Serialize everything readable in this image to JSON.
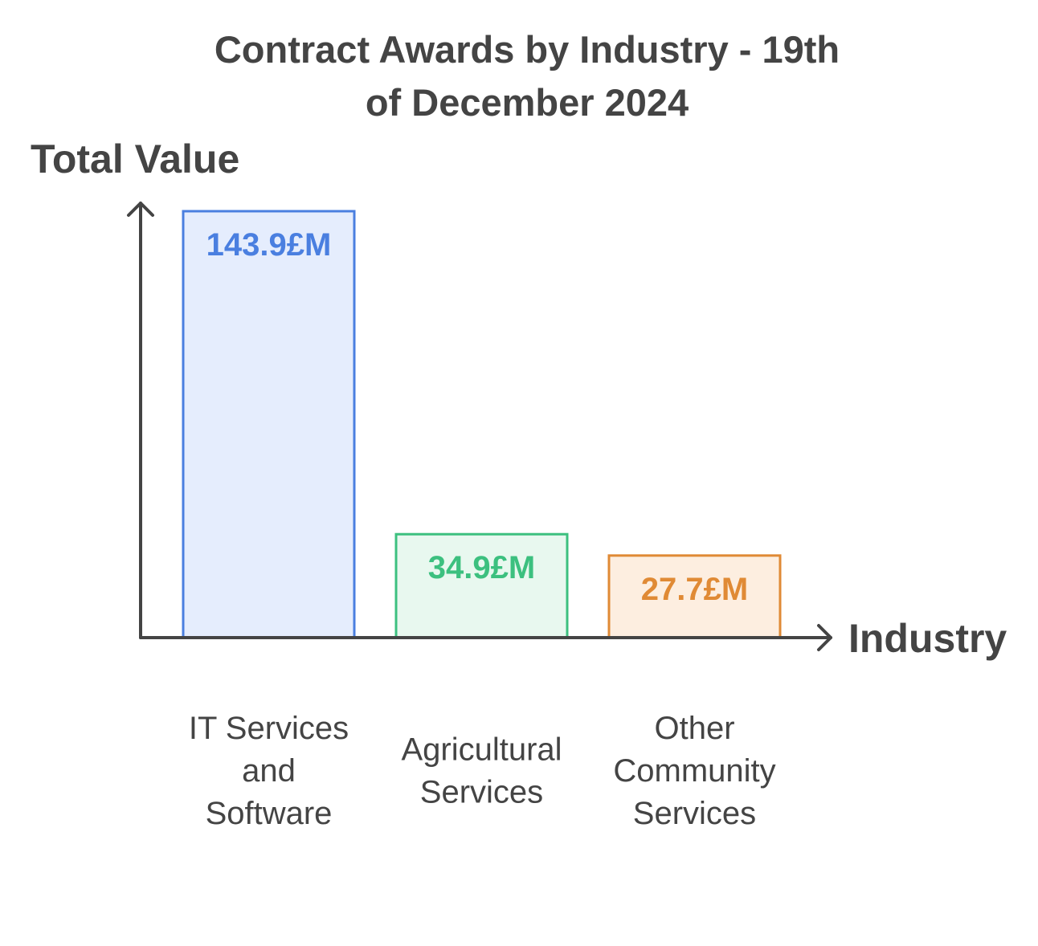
{
  "chart_data": {
    "type": "bar",
    "title": [
      "Contract Awards by Industry - 19th",
      "of December 2024"
    ],
    "ylabel": "Total Value",
    "xlabel": "Industry",
    "unit": "£M",
    "ylim": [
      0,
      143.9
    ],
    "grid": false,
    "categories": [
      [
        "IT Services",
        "and",
        "Software"
      ],
      [
        "Agricultural",
        "Services"
      ],
      [
        "Other",
        "Community",
        "Services"
      ]
    ],
    "values": [
      143.9,
      34.9,
      27.7
    ],
    "value_labels": [
      "143.9£M",
      "34.9£M",
      "27.7£M"
    ],
    "colors": {
      "stroke": [
        "#4a7fe0",
        "#3cc07f",
        "#e08a35"
      ],
      "fill": [
        "#e5edfd",
        "#e8f8ef",
        "#fdeee0"
      ],
      "axis": "#444444"
    }
  }
}
